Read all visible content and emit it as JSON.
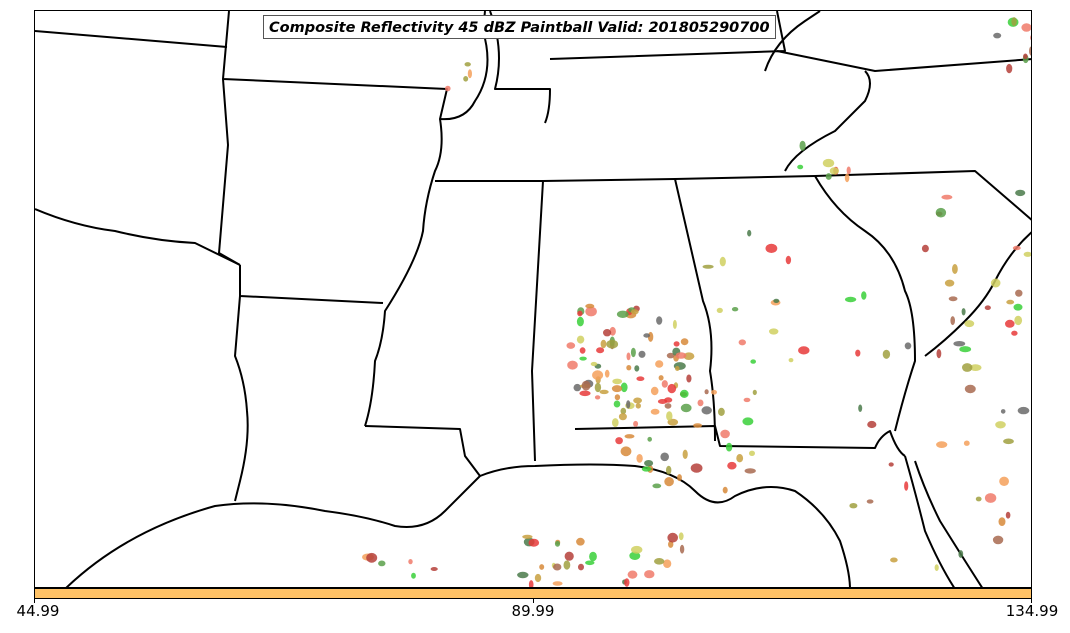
{
  "map": {
    "title": "Composite Reflectivity 45 dBZ Paintball Valid: 201805290700",
    "region": "Southeastern United States",
    "basemap_icon": "state-boundaries-map",
    "colors": {
      "paintball_palette": [
        "#e83a3a",
        "#f07a6a",
        "#b5403a",
        "#a86a50",
        "#f5a05a",
        "#d78a3a",
        "#c8a040",
        "#a0a040",
        "#5aa04a",
        "#3ad03a",
        "#4a7a4a",
        "#6a6a6a",
        "#d0d060"
      ],
      "boundary": "#000000",
      "background": "#ffffff"
    }
  },
  "colorbar": {
    "color": "#ffc266",
    "ticks": [
      "44.99",
      "89.99",
      "134.99"
    ]
  }
}
